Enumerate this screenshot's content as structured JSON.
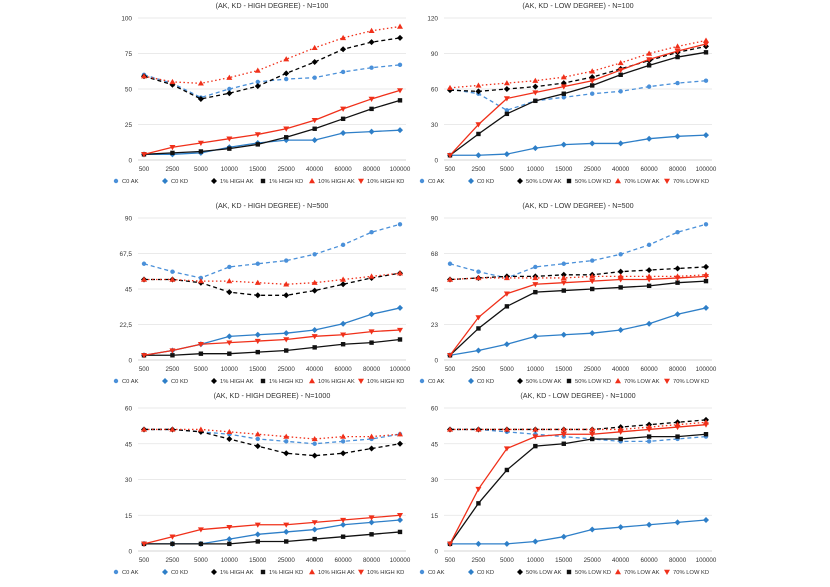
{
  "chart_data": [
    {
      "type": "line",
      "title": "(AK, KD - HIGH DEGREE) - N=100",
      "categories": [
        "500",
        "2500",
        "5000",
        "10000",
        "15000",
        "25000",
        "40000",
        "60000",
        "80000",
        "100000"
      ],
      "ylim": [
        0,
        100
      ],
      "yticks": [
        "0",
        "25",
        "50",
        "75",
        "100"
      ],
      "series": [
        {
          "name": "C0 AK",
          "values": [
            60,
            54,
            44,
            50,
            55,
            57,
            58,
            62,
            65,
            67
          ]
        },
        {
          "name": "C0 KD",
          "values": [
            4,
            4,
            5,
            9,
            12,
            14,
            14,
            19,
            20,
            21
          ]
        },
        {
          "name": "1% HIGH AK",
          "values": [
            59,
            53,
            43,
            47,
            52,
            61,
            69,
            78,
            83,
            86
          ]
        },
        {
          "name": "1% HIGH KD",
          "values": [
            4,
            5,
            6,
            8,
            11,
            16,
            22,
            29,
            36,
            42
          ]
        },
        {
          "name": "10% HIGH AK",
          "values": [
            59,
            55,
            54,
            58,
            63,
            71,
            79,
            86,
            91,
            94
          ]
        },
        {
          "name": "10% HIGH KD",
          "values": [
            4,
            9,
            12,
            15,
            18,
            22,
            28,
            36,
            43,
            49
          ]
        }
      ]
    },
    {
      "type": "line",
      "title": "(AK, KD - LOW DEGREE) - N=100",
      "categories": [
        "500",
        "2500",
        "5000",
        "10000",
        "15000",
        "25000",
        "40000",
        "60000",
        "80000",
        "100000"
      ],
      "ylim": [
        0,
        120
      ],
      "yticks": [
        "0",
        "30",
        "60",
        "90",
        "120"
      ],
      "series": [
        {
          "name": "C0 AK",
          "values": [
            60,
            56,
            42,
            50,
            53,
            56,
            58,
            62,
            65,
            67
          ]
        },
        {
          "name": "C0 KD",
          "values": [
            4,
            4,
            5,
            10,
            13,
            14,
            14,
            18,
            20,
            21
          ]
        },
        {
          "name": "50% LOW AK",
          "values": [
            59,
            58,
            60,
            62,
            65,
            70,
            77,
            84,
            91,
            96
          ]
        },
        {
          "name": "50% LOW KD",
          "values": [
            4,
            22,
            39,
            50,
            56,
            63,
            72,
            80,
            87,
            91
          ]
        },
        {
          "name": "70% LOW AK",
          "values": [
            61,
            63,
            65,
            67,
            70,
            75,
            82,
            90,
            96,
            101
          ]
        },
        {
          "name": "70% LOW KD",
          "values": [
            4,
            30,
            52,
            57,
            62,
            67,
            76,
            85,
            92,
            98
          ]
        }
      ]
    },
    {
      "type": "line",
      "title": "(AK, KD - HIGH DEGREE) - N=500",
      "categories": [
        "500",
        "2500",
        "5000",
        "10000",
        "15000",
        "25000",
        "40000",
        "60000",
        "80000",
        "100000"
      ],
      "ylim": [
        0,
        90
      ],
      "yticks": [
        "0",
        "22,5",
        "45",
        "67,5",
        "90"
      ],
      "series": [
        {
          "name": "C0 AK",
          "values": [
            61,
            56,
            52,
            59,
            61,
            63,
            67,
            73,
            81,
            86
          ]
        },
        {
          "name": "C0 KD",
          "values": [
            3,
            6,
            10,
            15,
            16,
            17,
            19,
            23,
            29,
            33
          ]
        },
        {
          "name": "1% HIGH AK",
          "values": [
            51,
            51,
            49,
            43,
            41,
            41,
            44,
            48,
            52,
            55
          ]
        },
        {
          "name": "1% HIGH KD",
          "values": [
            3,
            3,
            4,
            4,
            5,
            6,
            8,
            10,
            11,
            13
          ]
        },
        {
          "name": "10% HIGH AK",
          "values": [
            51,
            51,
            50,
            50,
            49,
            48,
            49,
            51,
            53,
            55
          ]
        },
        {
          "name": "10% HIGH KD",
          "values": [
            3,
            6,
            10,
            11,
            12,
            13,
            15,
            16,
            18,
            19
          ]
        }
      ]
    },
    {
      "type": "line",
      "title": "(AK, KD - LOW DEGREE) - N=500",
      "categories": [
        "500",
        "2500",
        "5000",
        "10000",
        "15000",
        "25000",
        "40000",
        "60000",
        "80000",
        "100000"
      ],
      "ylim": [
        0,
        90
      ],
      "yticks": [
        "0",
        "23",
        "45",
        "68",
        "90"
      ],
      "series": [
        {
          "name": "C0 AK",
          "values": [
            61,
            56,
            52,
            59,
            61,
            63,
            67,
            73,
            81,
            86
          ]
        },
        {
          "name": "C0 KD",
          "values": [
            3,
            6,
            10,
            15,
            16,
            17,
            19,
            23,
            29,
            33
          ]
        },
        {
          "name": "50% LOW AK",
          "values": [
            51,
            52,
            53,
            53,
            54,
            54,
            56,
            57,
            58,
            59
          ]
        },
        {
          "name": "50% LOW KD",
          "values": [
            3,
            20,
            34,
            43,
            44,
            45,
            46,
            47,
            49,
            50
          ]
        },
        {
          "name": "70% LOW AK",
          "values": [
            51,
            52,
            52,
            52,
            52,
            53,
            53,
            53,
            53,
            54
          ]
        },
        {
          "name": "70% LOW KD",
          "values": [
            3,
            27,
            42,
            48,
            49,
            50,
            51,
            51,
            52,
            53
          ]
        }
      ]
    },
    {
      "type": "line",
      "title": "(AK, KD - HIGH DEGREE) - N=1000",
      "categories": [
        "500",
        "2500",
        "5000",
        "10000",
        "15000",
        "25000",
        "40000",
        "60000",
        "80000",
        "100000"
      ],
      "ylim": [
        0,
        60
      ],
      "yticks": [
        "0",
        "15",
        "30",
        "45",
        "60"
      ],
      "series": [
        {
          "name": "C0 AK",
          "values": [
            51,
            51,
            50,
            49,
            47,
            46,
            45,
            46,
            47,
            49
          ]
        },
        {
          "name": "C0 KD",
          "values": [
            3,
            3,
            3,
            5,
            7,
            8,
            9,
            11,
            12,
            13
          ]
        },
        {
          "name": "1% HIGH AK",
          "values": [
            51,
            51,
            50,
            47,
            44,
            41,
            40,
            41,
            43,
            45
          ]
        },
        {
          "name": "1% HIGH KD",
          "values": [
            3,
            3,
            3,
            3,
            4,
            4,
            5,
            6,
            7,
            8
          ]
        },
        {
          "name": "10% HIGH AK",
          "values": [
            51,
            51,
            51,
            50,
            49,
            48,
            47,
            48,
            48,
            49
          ]
        },
        {
          "name": "10% HIGH KD",
          "values": [
            3,
            6,
            9,
            10,
            11,
            11,
            12,
            13,
            14,
            15
          ]
        }
      ]
    },
    {
      "type": "line",
      "title": "(AK, KD - LOW DEGREE) - N=1000",
      "categories": [
        "500",
        "2500",
        "5000",
        "10000",
        "15000",
        "25000",
        "40000",
        "60000",
        "80000",
        "100000"
      ],
      "ylim": [
        0,
        60
      ],
      "yticks": [
        "0",
        "15",
        "30",
        "45",
        "60"
      ],
      "series": [
        {
          "name": "C0 AK",
          "values": [
            51,
            51,
            50,
            49,
            48,
            47,
            46,
            46,
            47,
            48
          ]
        },
        {
          "name": "C0 KD",
          "values": [
            3,
            3,
            3,
            4,
            6,
            9,
            10,
            11,
            12,
            13
          ]
        },
        {
          "name": "50% LOW AK",
          "values": [
            51,
            51,
            51,
            51,
            51,
            51,
            52,
            53,
            54,
            55
          ]
        },
        {
          "name": "50% LOW KD",
          "values": [
            3,
            20,
            34,
            44,
            45,
            47,
            47,
            48,
            48,
            49
          ]
        },
        {
          "name": "70% LOW AK",
          "values": [
            51,
            51,
            51,
            51,
            51,
            51,
            51,
            52,
            53,
            54
          ]
        },
        {
          "name": "70% LOW KD",
          "values": [
            3,
            26,
            43,
            48,
            49,
            49,
            50,
            51,
            52,
            53
          ]
        }
      ]
    }
  ],
  "series_styles": [
    {
      "color": "#4a90d9",
      "dash": "4,3",
      "marker": "circle"
    },
    {
      "color": "#2e7fc8",
      "dash": "",
      "marker": "diamond"
    },
    {
      "color": "#000000",
      "dash": "4,3",
      "marker": "diamond"
    },
    {
      "color": "#111111",
      "dash": "",
      "marker": "square"
    },
    {
      "color": "#f0301a",
      "dash": "1.5,2.5",
      "marker": "triangle"
    },
    {
      "color": "#f0301a",
      "dash": "",
      "marker": "triangle-down"
    }
  ]
}
